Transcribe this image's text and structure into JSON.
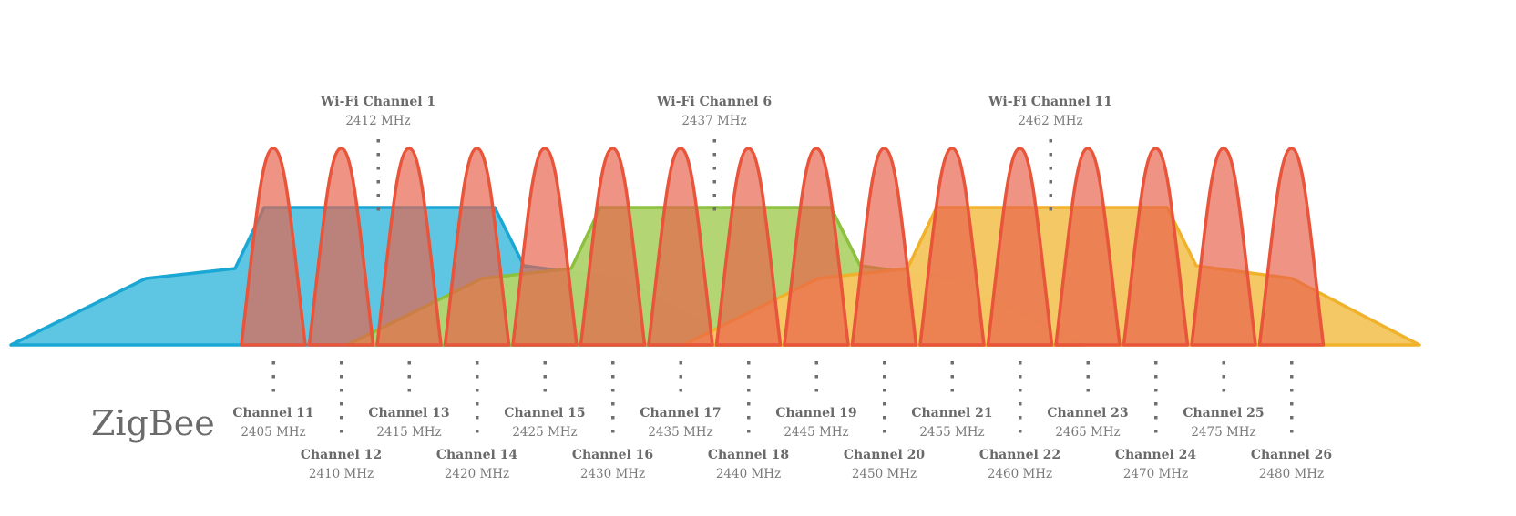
{
  "brand": "ZigBee",
  "wifi_channels": [
    {
      "label": "Wi-Fi Channel 1",
      "freq": "2412 MHz",
      "mhz": 2412,
      "fill": "#5bc5e2",
      "stroke": "#1aa7d4"
    },
    {
      "label": "Wi-Fi Channel 6",
      "freq": "2437 MHz",
      "mhz": 2437,
      "fill": "#b3d470",
      "stroke": "#8cc03f"
    },
    {
      "label": "Wi-Fi Channel 11",
      "freq": "2462 MHz",
      "mhz": 2462,
      "fill": "#f5c763",
      "stroke": "#f0b22a"
    }
  ],
  "zigbee_channels": [
    {
      "label": "Channel 11",
      "freq": "2405 MHz",
      "mhz": 2405
    },
    {
      "label": "Channel 12",
      "freq": "2410 MHz",
      "mhz": 2410
    },
    {
      "label": "Channel 13",
      "freq": "2415 MHz",
      "mhz": 2415
    },
    {
      "label": "Channel 14",
      "freq": "2420 MHz",
      "mhz": 2420
    },
    {
      "label": "Channel 15",
      "freq": "2425 MHz",
      "mhz": 2425
    },
    {
      "label": "Channel 16",
      "freq": "2430 MHz",
      "mhz": 2430
    },
    {
      "label": "Channel 17",
      "freq": "2435 MHz",
      "mhz": 2435
    },
    {
      "label": "Channel 18",
      "freq": "2440 MHz",
      "mhz": 2440
    },
    {
      "label": "Channel 19",
      "freq": "2445 MHz",
      "mhz": 2445
    },
    {
      "label": "Channel 20",
      "freq": "2450 MHz",
      "mhz": 2450
    },
    {
      "label": "Channel 21",
      "freq": "2455 MHz",
      "mhz": 2455
    },
    {
      "label": "Channel 22",
      "freq": "2460 MHz",
      "mhz": 2460
    },
    {
      "label": "Channel 23",
      "freq": "2465 MHz",
      "mhz": 2465
    },
    {
      "label": "Channel 24",
      "freq": "2470 MHz",
      "mhz": 2470
    },
    {
      "label": "Channel 25",
      "freq": "2475 MHz",
      "mhz": 2475
    },
    {
      "label": "Channel 26",
      "freq": "2480 MHz",
      "mhz": 2480
    }
  ],
  "colors": {
    "zigbee_fill": "#e8604a",
    "zigbee_stroke": "#e8553a",
    "text": "#6a6a6a",
    "dots": "#6f6f6f"
  }
}
